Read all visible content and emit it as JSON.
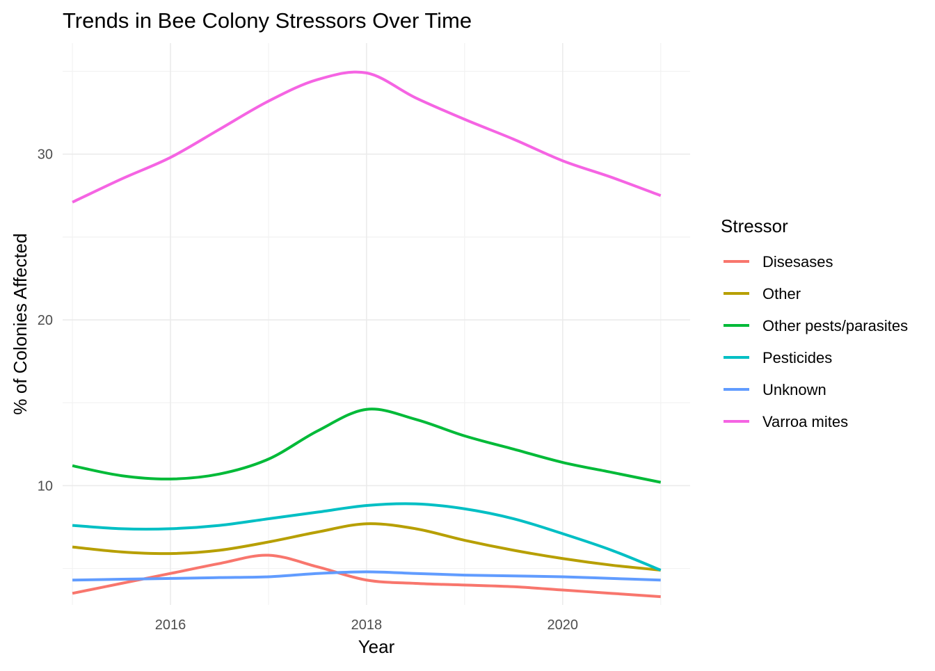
{
  "chart_data": {
    "type": "line",
    "title": "Trends in Bee Colony Stressors Over Time",
    "xlabel": "Year",
    "ylabel": "% of Colonies Affected",
    "xlim": [
      2014.9,
      2021.3
    ],
    "ylim": [
      2.8,
      36.7
    ],
    "x_ticks": [
      2016,
      2018,
      2020
    ],
    "x_tick_labels": [
      "2016",
      "2018",
      "2020"
    ],
    "y_ticks": [
      10,
      20,
      30
    ],
    "y_tick_labels": [
      "10",
      "20",
      "30"
    ],
    "grid": true,
    "legend": {
      "title": "Stressor",
      "position": "right"
    },
    "x": [
      2015,
      2015.5,
      2016,
      2016.5,
      2017,
      2017.5,
      2018,
      2018.5,
      2019,
      2019.5,
      2020,
      2020.5,
      2021
    ],
    "series": [
      {
        "name": "Disesases",
        "color": "#F8766D",
        "values": [
          3.5,
          4.1,
          4.7,
          5.3,
          5.8,
          5.1,
          4.3,
          4.1,
          4.0,
          3.9,
          3.7,
          3.5,
          3.3
        ]
      },
      {
        "name": "Other",
        "color": "#B79F00",
        "values": [
          6.3,
          6.0,
          5.9,
          6.1,
          6.6,
          7.2,
          7.7,
          7.4,
          6.7,
          6.1,
          5.6,
          5.2,
          4.9
        ]
      },
      {
        "name": "Other pests/parasites",
        "color": "#00BA38",
        "values": [
          11.2,
          10.6,
          10.4,
          10.7,
          11.6,
          13.3,
          14.6,
          14.0,
          13.0,
          12.2,
          11.4,
          10.8,
          10.2
        ]
      },
      {
        "name": "Pesticides",
        "color": "#00BFC4",
        "values": [
          7.6,
          7.4,
          7.4,
          7.6,
          8.0,
          8.4,
          8.8,
          8.9,
          8.6,
          8.0,
          7.1,
          6.1,
          4.9
        ]
      },
      {
        "name": "Unknown",
        "color": "#619CFF",
        "values": [
          4.3,
          4.35,
          4.4,
          4.45,
          4.5,
          4.7,
          4.8,
          4.7,
          4.6,
          4.55,
          4.5,
          4.4,
          4.3
        ]
      },
      {
        "name": "Varroa mites",
        "color": "#F564E3",
        "values": [
          27.1,
          28.5,
          29.8,
          31.5,
          33.2,
          34.5,
          34.9,
          33.4,
          32.1,
          30.9,
          29.6,
          28.6,
          27.5
        ]
      }
    ]
  }
}
